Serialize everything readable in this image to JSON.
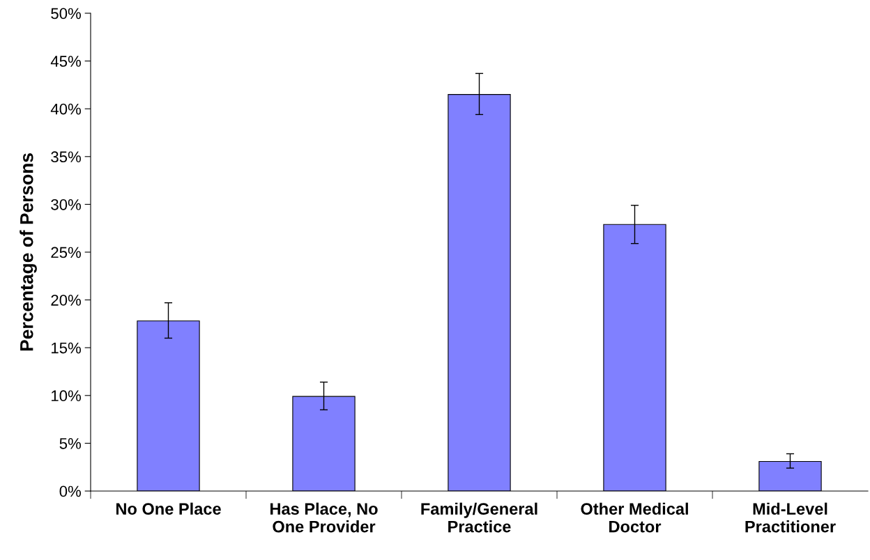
{
  "chart_data": {
    "type": "bar",
    "ylabel": "Percentage of Persons",
    "categories": [
      "No One Place",
      "Has Place, No\nOne Provider",
      "Family/General\nPractice",
      "Other Medical\nDoctor",
      "Mid-Level\nPractitioner"
    ],
    "values": [
      17.8,
      9.9,
      41.5,
      27.9,
      3.1
    ],
    "errors": [
      [
        16.0,
        19.7
      ],
      [
        8.5,
        11.4
      ],
      [
        39.4,
        43.7
      ],
      [
        25.9,
        29.9
      ],
      [
        2.4,
        3.9
      ]
    ],
    "color": "#8080ff",
    "ylim": [
      0,
      50
    ],
    "yticks": [
      {
        "value": 0,
        "label": "0%"
      },
      {
        "value": 5,
        "label": "5%"
      },
      {
        "value": 10,
        "label": "10%"
      },
      {
        "value": 15,
        "label": "15%"
      },
      {
        "value": 20,
        "label": "20%"
      },
      {
        "value": 25,
        "label": "25%"
      },
      {
        "value": 30,
        "label": "30%"
      },
      {
        "value": 35,
        "label": "35%"
      },
      {
        "value": 40,
        "label": "40%"
      },
      {
        "value": 45,
        "label": "45%"
      },
      {
        "value": 50,
        "label": "50%"
      }
    ],
    "grid": false
  }
}
